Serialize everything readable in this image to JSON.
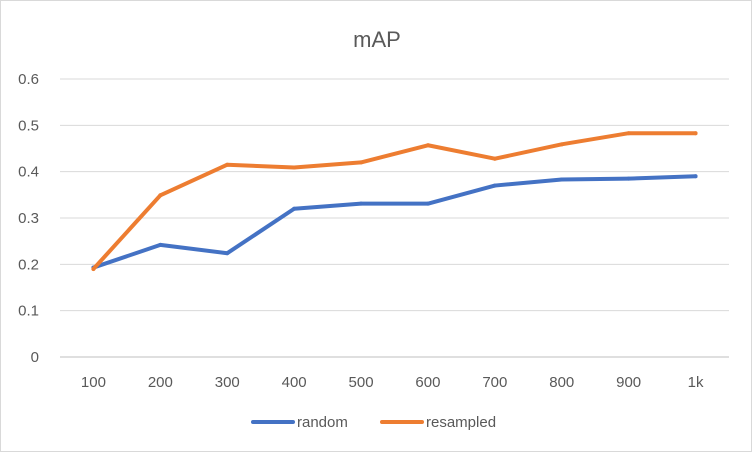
{
  "chart_data": {
    "type": "line",
    "title": "mAP",
    "categories": [
      "100",
      "200",
      "300",
      "400",
      "500",
      "600",
      "700",
      "800",
      "900",
      "1k"
    ],
    "y_ticks": [
      "0",
      "0.1",
      "0.2",
      "0.3",
      "0.4",
      "0.5",
      "0.6"
    ],
    "ylim": [
      0,
      0.6
    ],
    "grid": true,
    "legend_position": "bottom",
    "series": [
      {
        "name": "random",
        "color": "#4472c4",
        "values": [
          0.193,
          0.242,
          0.224,
          0.32,
          0.331,
          0.331,
          0.37,
          0.383,
          0.385,
          0.39
        ]
      },
      {
        "name": "resampled",
        "color": "#ed7d31",
        "values": [
          0.19,
          0.349,
          0.415,
          0.409,
          0.42,
          0.457,
          0.428,
          0.459,
          0.483,
          0.483
        ]
      }
    ]
  }
}
